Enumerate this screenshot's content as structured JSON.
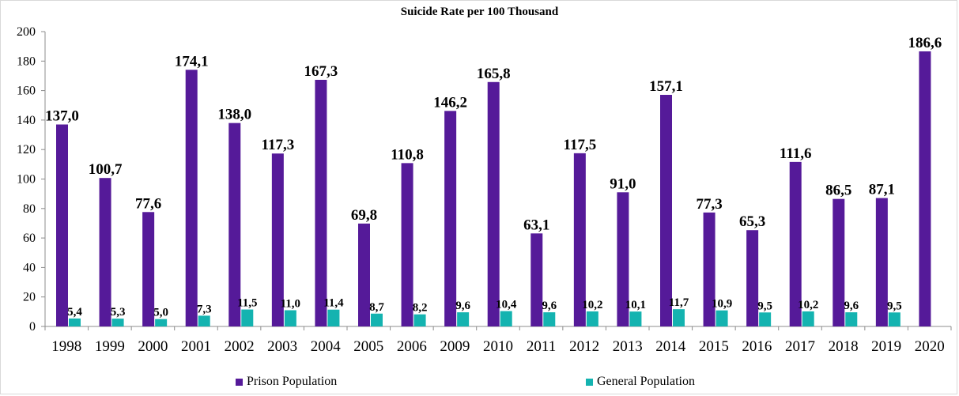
{
  "colors": {
    "prison": "#551a99",
    "general": "#14b3b0",
    "axis": "#8c8c8c"
  },
  "chart_data": {
    "type": "bar",
    "title": "Suicide Rate per 100 Thousand",
    "xlabel": "",
    "ylabel": "",
    "ylim": [
      0,
      200
    ],
    "yticks": [
      "0",
      "20",
      "40",
      "60",
      "80",
      "100",
      "120",
      "140",
      "160",
      "180",
      "200"
    ],
    "grid": false,
    "legend_position": "bottom",
    "categories": [
      "1998",
      "1999",
      "2000",
      "2001",
      "2002",
      "2003",
      "2004",
      "2005",
      "2006",
      "2009",
      "2010",
      "2011",
      "2012",
      "2013",
      "2014",
      "2015",
      "2016",
      "2017",
      "2018",
      "2019",
      "2020"
    ],
    "series": [
      {
        "name": "Prison Population",
        "values": [
          137.0,
          100.7,
          77.6,
          174.1,
          138.0,
          117.3,
          167.3,
          69.8,
          110.8,
          146.2,
          165.8,
          63.1,
          117.5,
          91.0,
          157.1,
          77.3,
          65.3,
          111.6,
          86.5,
          87.1,
          186.6
        ],
        "labels": [
          "137,0",
          "100,7",
          "77,6",
          "174,1",
          "138,0",
          "117,3",
          "167,3",
          "69,8",
          "110,8",
          "146,2",
          "165,8",
          "63,1",
          "117,5",
          "91,0",
          "157,1",
          "77,3",
          "65,3",
          "111,6",
          "86,5",
          "87,1",
          "186,6"
        ]
      },
      {
        "name": "General Population",
        "values": [
          5.4,
          5.3,
          5.0,
          7.3,
          11.5,
          11.0,
          11.4,
          8.7,
          8.2,
          9.6,
          10.4,
          9.6,
          10.2,
          10.1,
          11.7,
          10.9,
          9.5,
          10.2,
          9.6,
          9.5,
          null
        ],
        "labels": [
          "5,4",
          "5,3",
          "5,0",
          "7,3",
          "11,5",
          "11,0",
          "11,4",
          "8,7",
          "8,2",
          "9,6",
          "10,4",
          "9,6",
          "10,2",
          "10,1",
          "11,7",
          "10,9",
          "9,5",
          "10,2",
          "9,6",
          "9,5",
          ""
        ]
      }
    ]
  }
}
